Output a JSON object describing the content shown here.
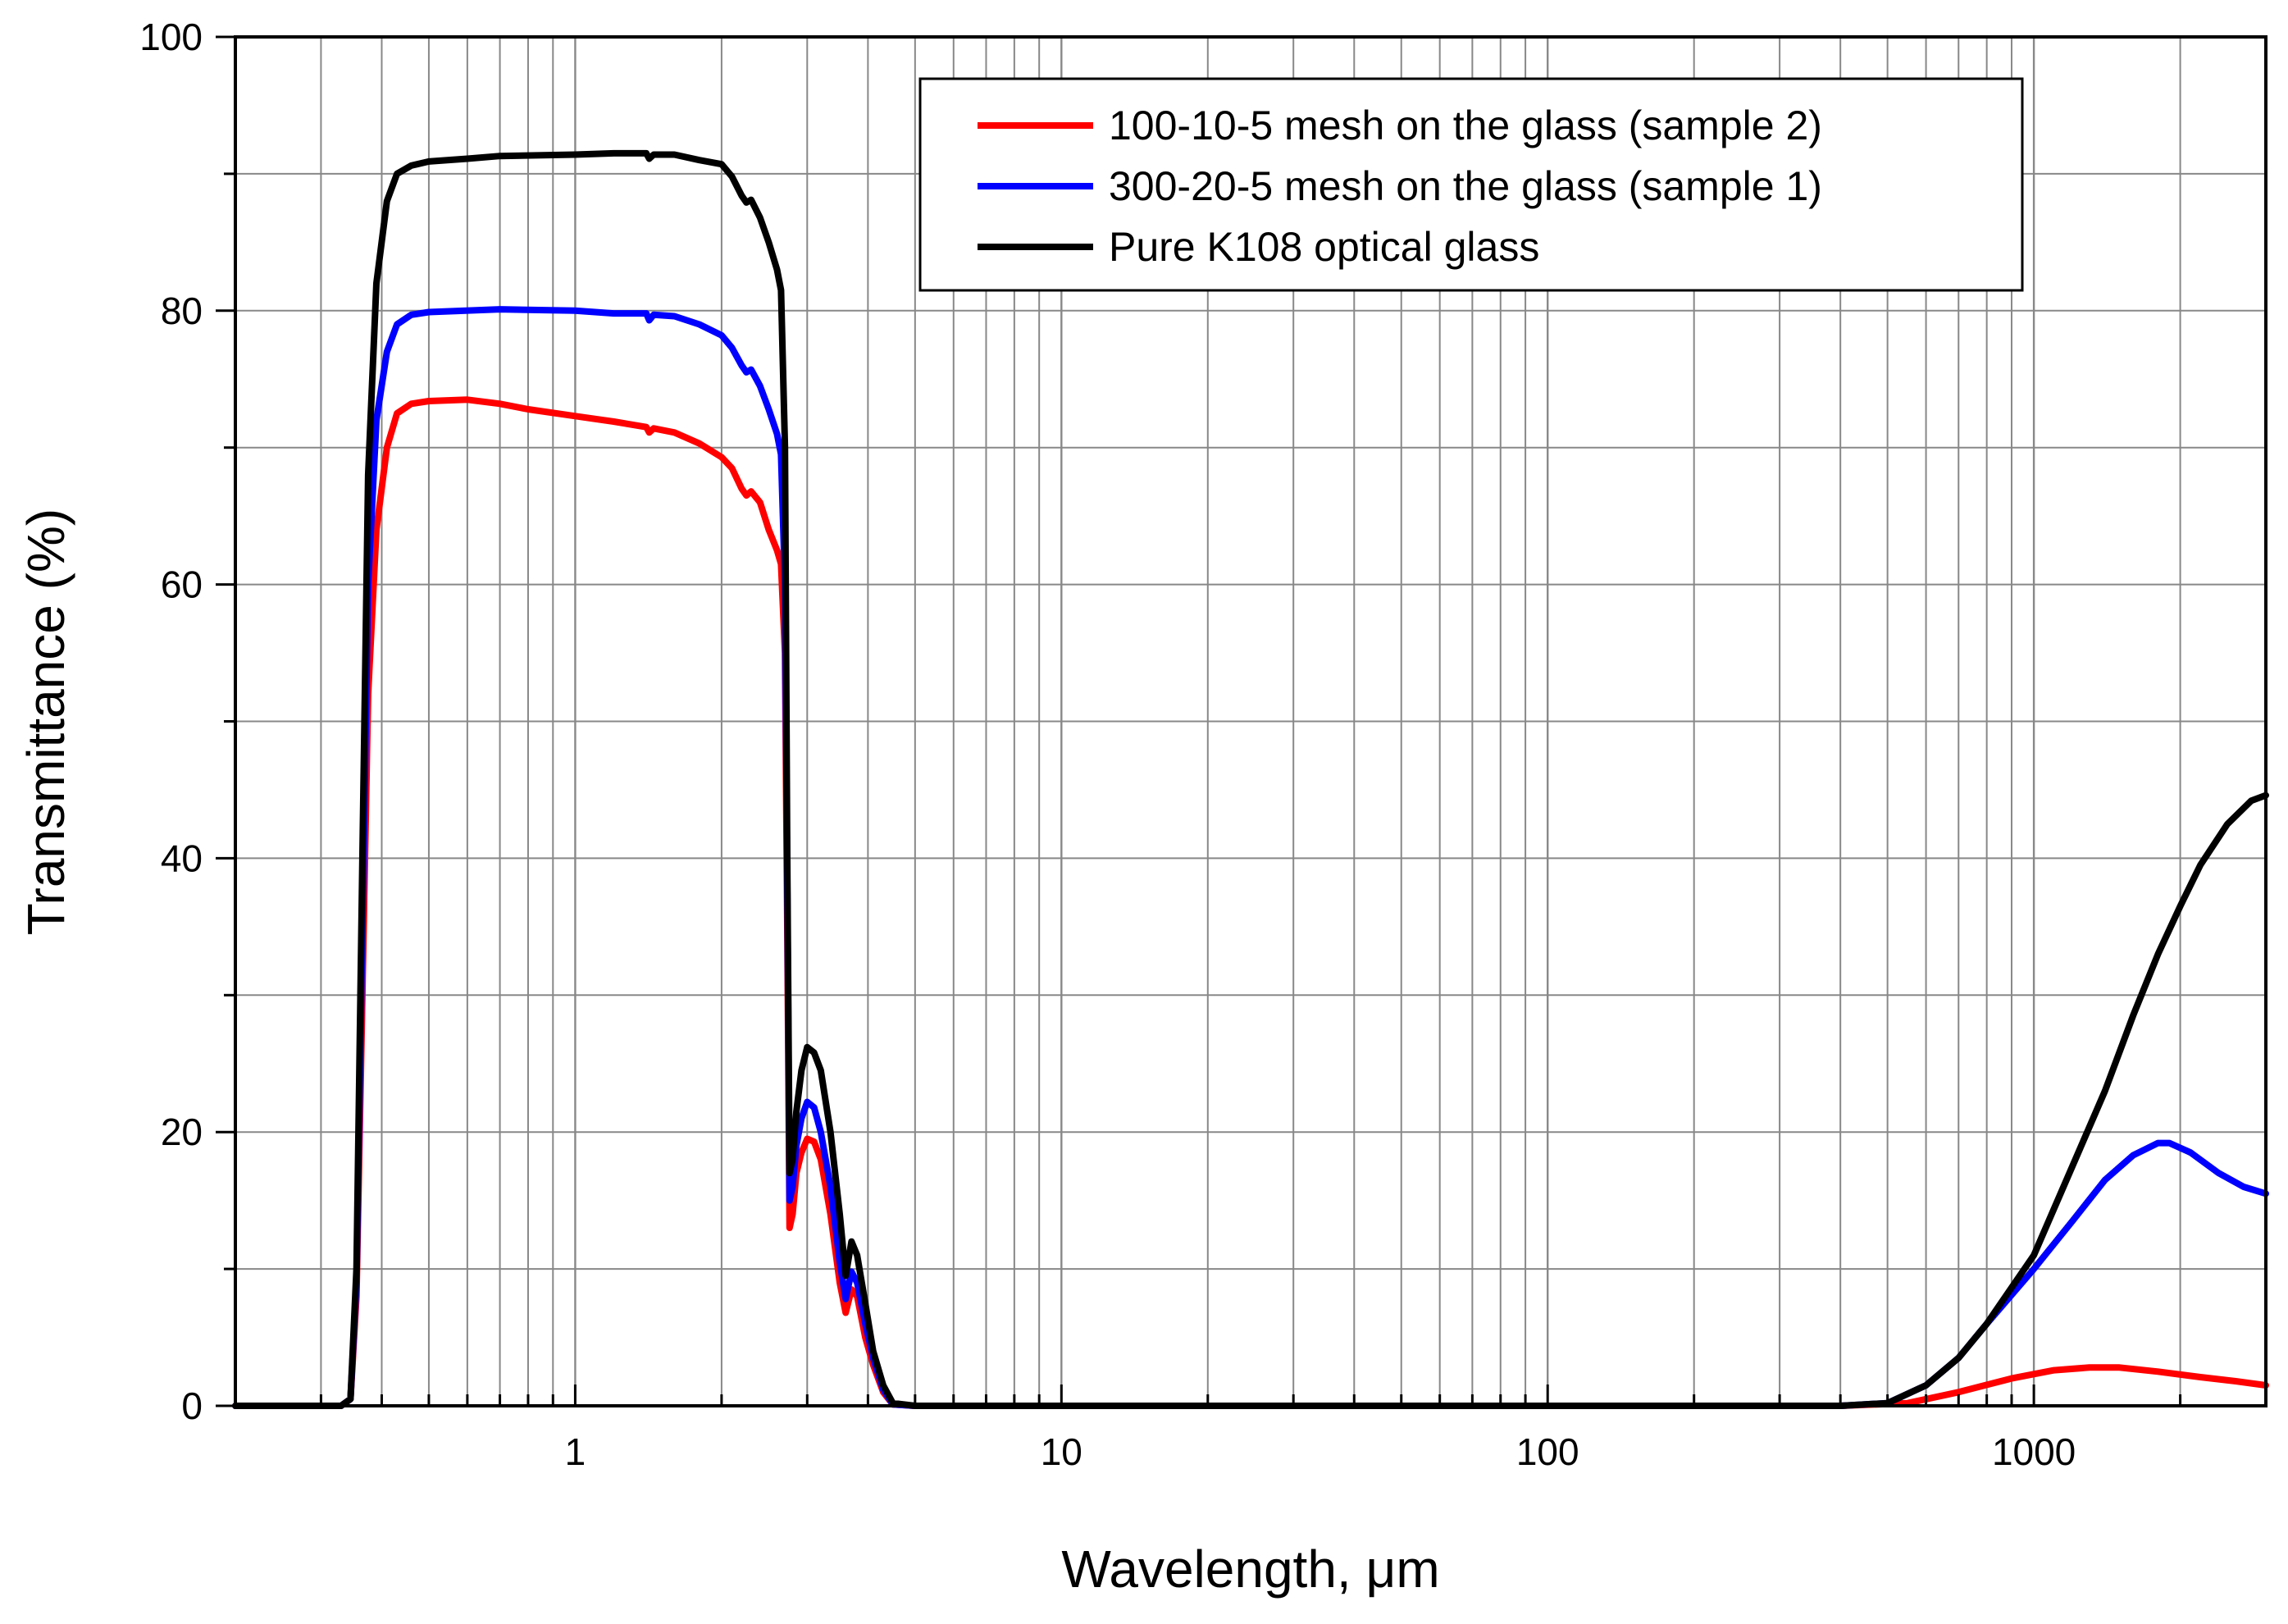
{
  "chart_data": {
    "type": "line",
    "title": "",
    "xlabel": "Wavelength, μm",
    "ylabel": "Transmittance (%)",
    "xscale": "log",
    "xlim": [
      0.2,
      3000
    ],
    "ylim": [
      0,
      100
    ],
    "x_ticks": [
      1,
      10,
      100,
      1000
    ],
    "x_tick_labels": [
      "1",
      "10",
      "100",
      "1000"
    ],
    "y_ticks": [
      0,
      20,
      40,
      60,
      80,
      100
    ],
    "y_tick_labels": [
      "0",
      "20",
      "40",
      "60",
      "80",
      "100"
    ],
    "grid": true,
    "legend_position": "top-right",
    "series": [
      {
        "name": "100-10-5 mesh on the glass (sample 2)",
        "color": "#ff0000",
        "points": [
          [
            0.2,
            0
          ],
          [
            0.33,
            0
          ],
          [
            0.345,
            0.5
          ],
          [
            0.355,
            8
          ],
          [
            0.365,
            30
          ],
          [
            0.375,
            52
          ],
          [
            0.39,
            64
          ],
          [
            0.41,
            70
          ],
          [
            0.43,
            72.5
          ],
          [
            0.46,
            73.2
          ],
          [
            0.5,
            73.4
          ],
          [
            0.6,
            73.5
          ],
          [
            0.7,
            73.2
          ],
          [
            0.8,
            72.8
          ],
          [
            1.0,
            72.3
          ],
          [
            1.2,
            71.9
          ],
          [
            1.4,
            71.5
          ],
          [
            1.42,
            71.1
          ],
          [
            1.45,
            71.4
          ],
          [
            1.6,
            71.1
          ],
          [
            1.8,
            70.3
          ],
          [
            2.0,
            69.3
          ],
          [
            2.1,
            68.5
          ],
          [
            2.2,
            67.0
          ],
          [
            2.25,
            66.5
          ],
          [
            2.3,
            66.8
          ],
          [
            2.4,
            66.0
          ],
          [
            2.5,
            64.0
          ],
          [
            2.6,
            62.5
          ],
          [
            2.65,
            61.5
          ],
          [
            2.7,
            55
          ],
          [
            2.73,
            35
          ],
          [
            2.76,
            13
          ],
          [
            2.8,
            14
          ],
          [
            2.85,
            17
          ],
          [
            2.92,
            18.5
          ],
          [
            3.0,
            19.5
          ],
          [
            3.1,
            19.3
          ],
          [
            3.2,
            18
          ],
          [
            3.35,
            14
          ],
          [
            3.5,
            9
          ],
          [
            3.6,
            6.8
          ],
          [
            3.7,
            8.5
          ],
          [
            3.8,
            8
          ],
          [
            3.95,
            5
          ],
          [
            4.1,
            3
          ],
          [
            4.3,
            1
          ],
          [
            4.5,
            0.1
          ],
          [
            5,
            0
          ],
          [
            10,
            0
          ],
          [
            100,
            0
          ],
          [
            400,
            0
          ],
          [
            550,
            0.2
          ],
          [
            700,
            1.0
          ],
          [
            900,
            2.0
          ],
          [
            1100,
            2.6
          ],
          [
            1300,
            2.8
          ],
          [
            1500,
            2.8
          ],
          [
            1800,
            2.5
          ],
          [
            2200,
            2.1
          ],
          [
            2600,
            1.8
          ],
          [
            3000,
            1.5
          ]
        ]
      },
      {
        "name": "300-20-5 mesh on the glass (sample 1)",
        "color": "#0000ff",
        "points": [
          [
            0.2,
            0
          ],
          [
            0.33,
            0
          ],
          [
            0.345,
            0.5
          ],
          [
            0.355,
            9
          ],
          [
            0.365,
            35
          ],
          [
            0.375,
            60
          ],
          [
            0.39,
            72
          ],
          [
            0.41,
            77
          ],
          [
            0.43,
            79
          ],
          [
            0.46,
            79.7
          ],
          [
            0.5,
            79.9
          ],
          [
            0.7,
            80.1
          ],
          [
            1.0,
            80.0
          ],
          [
            1.2,
            79.8
          ],
          [
            1.4,
            79.8
          ],
          [
            1.42,
            79.3
          ],
          [
            1.45,
            79.7
          ],
          [
            1.6,
            79.6
          ],
          [
            1.8,
            79.0
          ],
          [
            2.0,
            78.2
          ],
          [
            2.1,
            77.3
          ],
          [
            2.2,
            76.0
          ],
          [
            2.25,
            75.5
          ],
          [
            2.3,
            75.7
          ],
          [
            2.4,
            74.5
          ],
          [
            2.5,
            72.8
          ],
          [
            2.6,
            71.0
          ],
          [
            2.65,
            69.5
          ],
          [
            2.7,
            60
          ],
          [
            2.73,
            38
          ],
          [
            2.76,
            15
          ],
          [
            2.8,
            16
          ],
          [
            2.85,
            19
          ],
          [
            2.92,
            21
          ],
          [
            3.0,
            22.2
          ],
          [
            3.1,
            21.8
          ],
          [
            3.2,
            20
          ],
          [
            3.35,
            16
          ],
          [
            3.5,
            10.5
          ],
          [
            3.6,
            7.8
          ],
          [
            3.7,
            9.8
          ],
          [
            3.8,
            9
          ],
          [
            3.95,
            6
          ],
          [
            4.1,
            3.5
          ],
          [
            4.3,
            1.2
          ],
          [
            4.5,
            0.1
          ],
          [
            5,
            0
          ],
          [
            10,
            0
          ],
          [
            100,
            0
          ],
          [
            400,
            0
          ],
          [
            500,
            0.2
          ],
          [
            600,
            1.5
          ],
          [
            700,
            3.5
          ],
          [
            800,
            6
          ],
          [
            1000,
            10
          ],
          [
            1200,
            13.5
          ],
          [
            1400,
            16.5
          ],
          [
            1600,
            18.3
          ],
          [
            1800,
            19.2
          ],
          [
            1900,
            19.2
          ],
          [
            2100,
            18.5
          ],
          [
            2400,
            17.0
          ],
          [
            2700,
            16.0
          ],
          [
            3000,
            15.5
          ]
        ]
      },
      {
        "name": "Pure K108 optical glass",
        "color": "#000000",
        "points": [
          [
            0.2,
            0
          ],
          [
            0.33,
            0
          ],
          [
            0.345,
            0.5
          ],
          [
            0.355,
            10
          ],
          [
            0.365,
            40
          ],
          [
            0.375,
            68
          ],
          [
            0.39,
            82
          ],
          [
            0.41,
            88
          ],
          [
            0.43,
            90
          ],
          [
            0.46,
            90.6
          ],
          [
            0.5,
            90.9
          ],
          [
            0.6,
            91.1
          ],
          [
            0.7,
            91.3
          ],
          [
            1.0,
            91.4
          ],
          [
            1.2,
            91.5
          ],
          [
            1.4,
            91.5
          ],
          [
            1.42,
            91.1
          ],
          [
            1.45,
            91.4
          ],
          [
            1.6,
            91.4
          ],
          [
            1.8,
            91.0
          ],
          [
            2.0,
            90.7
          ],
          [
            2.1,
            89.8
          ],
          [
            2.2,
            88.4
          ],
          [
            2.25,
            87.9
          ],
          [
            2.3,
            88.1
          ],
          [
            2.4,
            86.8
          ],
          [
            2.5,
            85.0
          ],
          [
            2.6,
            83.0
          ],
          [
            2.65,
            81.5
          ],
          [
            2.7,
            70
          ],
          [
            2.73,
            40
          ],
          [
            2.76,
            17
          ],
          [
            2.8,
            18
          ],
          [
            2.85,
            21.5
          ],
          [
            2.92,
            24.5
          ],
          [
            3.0,
            26.2
          ],
          [
            3.1,
            25.8
          ],
          [
            3.2,
            24.5
          ],
          [
            3.35,
            20
          ],
          [
            3.5,
            14
          ],
          [
            3.6,
            9.5
          ],
          [
            3.7,
            12
          ],
          [
            3.8,
            11
          ],
          [
            3.95,
            7.5
          ],
          [
            4.1,
            4
          ],
          [
            4.3,
            1.5
          ],
          [
            4.5,
            0.2
          ],
          [
            5,
            0
          ],
          [
            10,
            0
          ],
          [
            100,
            0
          ],
          [
            400,
            0
          ],
          [
            500,
            0.2
          ],
          [
            600,
            1.5
          ],
          [
            700,
            3.5
          ],
          [
            800,
            6
          ],
          [
            1000,
            11
          ],
          [
            1200,
            17.5
          ],
          [
            1400,
            23
          ],
          [
            1600,
            28.5
          ],
          [
            1800,
            33
          ],
          [
            2000,
            36.5
          ],
          [
            2200,
            39.5
          ],
          [
            2500,
            42.5
          ],
          [
            2800,
            44.2
          ],
          [
            3000,
            44.6
          ]
        ]
      }
    ]
  }
}
